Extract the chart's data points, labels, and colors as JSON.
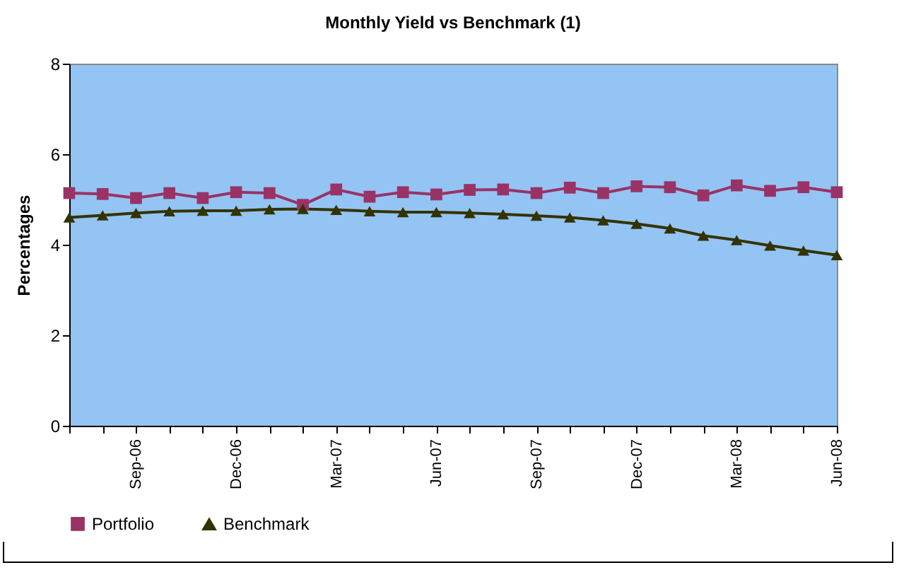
{
  "chart_data": {
    "type": "line",
    "title": "Monthly Yield vs Benchmark (1)",
    "ylabel": "Percentages",
    "categories": [
      null,
      null,
      "Sep-06",
      null,
      null,
      "Dec-06",
      null,
      null,
      "Mar-07",
      null,
      null,
      "Jun-07",
      null,
      null,
      "Sep-07",
      null,
      null,
      "Dec-07",
      null,
      null,
      "Mar-08",
      null,
      null,
      "Jun-08"
    ],
    "series": [
      {
        "name": "Portfolio",
        "color": "#993366",
        "marker": "square",
        "values": [
          5.14,
          5.12,
          5.03,
          5.14,
          5.03,
          5.16,
          5.14,
          4.88,
          5.22,
          5.06,
          5.16,
          5.11,
          5.21,
          5.22,
          5.14,
          5.26,
          5.14,
          5.29,
          5.27,
          5.09,
          5.31,
          5.19,
          5.27,
          5.16
        ]
      },
      {
        "name": "Benchmark",
        "color": "#333300",
        "marker": "triangle",
        "values": [
          4.6,
          4.65,
          4.7,
          4.74,
          4.75,
          4.75,
          4.78,
          4.79,
          4.77,
          4.74,
          4.72,
          4.72,
          4.7,
          4.67,
          4.64,
          4.6,
          4.54,
          4.46,
          4.36,
          4.2,
          4.1,
          3.98,
          3.87,
          3.77
        ]
      }
    ],
    "ylim": [
      0,
      8
    ],
    "yticks": [
      0,
      2,
      4,
      6,
      8
    ],
    "grid": false,
    "legend": "bottom"
  }
}
